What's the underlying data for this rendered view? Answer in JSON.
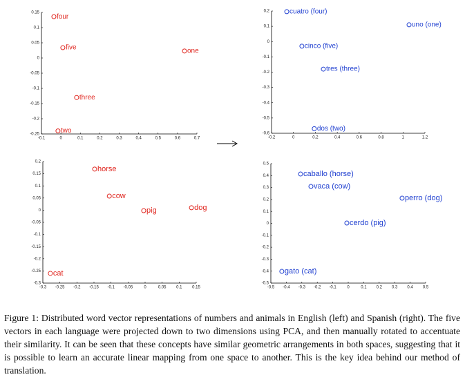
{
  "chart_data": [
    {
      "type": "scatter",
      "color": "#e0261f",
      "labels": [
        "four",
        "five",
        "one",
        "three",
        "two"
      ],
      "x": [
        -0.036,
        0.01,
        0.636,
        0.081,
        -0.015
      ],
      "values": [
        0.136,
        0.034,
        0.023,
        -0.13,
        -0.24
      ],
      "xlim": [
        -0.1,
        0.7
      ],
      "ylim": [
        -0.25,
        0.15
      ],
      "xticks": [
        -0.1,
        0,
        0.1,
        0.2,
        0.3,
        0.4,
        0.5,
        0.6,
        0.7
      ],
      "yticks": [
        -0.25,
        -0.2,
        -0.15,
        -0.1,
        -0.05,
        0,
        0.05,
        0.1,
        0.15
      ]
    },
    {
      "type": "scatter",
      "color": "#1f3fd0",
      "labels": [
        "cuatro (four)",
        "uno (one)",
        "cinco (five)",
        "tres (three)",
        "dos (two)"
      ],
      "x": [
        -0.061,
        1.055,
        0.077,
        0.273,
        0.19
      ],
      "values": [
        0.196,
        0.11,
        -0.03,
        -0.18,
        -0.57
      ],
      "xlim": [
        -0.2,
        1.2
      ],
      "ylim": [
        -0.6,
        0.2
      ],
      "xticks": [
        -0.2,
        0,
        0.2,
        0.4,
        0.6,
        0.8,
        1,
        1.2
      ],
      "yticks": [
        -0.6,
        -0.5,
        -0.4,
        -0.3,
        -0.2,
        -0.1,
        0,
        0.1,
        0.2
      ]
    },
    {
      "type": "scatter",
      "color": "#e0261f",
      "labels": [
        "horse",
        "cow",
        "pig",
        "dog",
        "cat"
      ],
      "x": [
        -0.148,
        -0.105,
        -0.004,
        0.136,
        -0.278
      ],
      "values": [
        0.169,
        0.058,
        -0.002,
        0.01,
        -0.26
      ],
      "xlim": [
        -0.3,
        0.15
      ],
      "ylim": [
        -0.3,
        0.2
      ],
      "xticks": [
        -0.3,
        -0.25,
        -0.2,
        -0.15,
        -0.1,
        -0.05,
        0,
        0.05,
        0.1,
        0.15
      ],
      "yticks": [
        -0.3,
        -0.25,
        -0.2,
        -0.15,
        -0.1,
        -0.05,
        0,
        0.05,
        0.1,
        0.15,
        0.2
      ]
    },
    {
      "type": "scatter",
      "color": "#1f3fd0",
      "labels": [
        "caballo (horse)",
        "vaca (cow)",
        "perro (dog)",
        "cerdo (pig)",
        "gato (cat)"
      ],
      "x": [
        -0.308,
        -0.241,
        0.348,
        -0.009,
        -0.429
      ],
      "values": [
        0.413,
        0.309,
        0.211,
        0.003,
        -0.402
      ],
      "xlim": [
        -0.5,
        0.5
      ],
      "ylim": [
        -0.5,
        0.5
      ],
      "xticks": [
        -0.5,
        -0.4,
        -0.3,
        -0.2,
        -0.1,
        0,
        0.1,
        0.2,
        0.3,
        0.4,
        0.5
      ],
      "yticks": [
        -0.5,
        -0.4,
        -0.3,
        -0.2,
        -0.1,
        0,
        0.1,
        0.2,
        0.3,
        0.4,
        0.5
      ]
    }
  ],
  "caption": "Figure 1: Distributed word vector representations of numbers and animals in English (left) and Spanish (right). The five vectors in each language were projected down to two dimensions using PCA, and then manually rotated to accentuate their similarity. It can be seen that these concepts have similar geometric arrangements in both spaces, suggesting that it is possible to learn an accurate linear mapping from one space to another. This is the key idea behind our method of translation."
}
